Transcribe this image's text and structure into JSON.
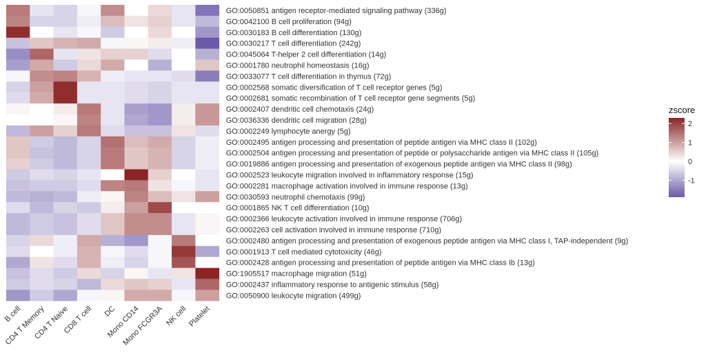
{
  "chart_data": {
    "type": "heatmap",
    "title": "",
    "xlabel": "",
    "ylabel": "",
    "columns": [
      "B cell",
      "CD4 T Memory",
      "CD4 T Naive",
      "CD8 T cell",
      "DC",
      "Mono CD14",
      "Mono FCGR3A",
      "NK cell",
      "Platelet"
    ],
    "rows": [
      "GO:0050851 antigen receptor-mediated signaling pathway (336g)",
      "GO:0042100 B cell proliferation (94g)",
      "GO:0030183 B cell differentiation (130g)",
      "GO:0030217 T cell differentiation (242g)",
      "GO:0045064 T-helper 2 cell differentiation (14g)",
      "GO:0001780 neutrophil homeostasis (16g)",
      "GO:0033077 T cell differentiation in thymus (72g)",
      "GO:0002568 somatic diversification of T cell receptor genes (5g)",
      "GO:0002681 somatic recombination of T cell receptor gene segments (5g)",
      "GO:0002407 dendritic cell chemotaxis (24g)",
      "GO:0036336 dendritic cell migration (28g)",
      "GO:0002249 lymphocyte anergy (5g)",
      "GO:0002495 antigen processing and presentation of peptide antigen via MHC class II (102g)",
      "GO:0002504 antigen processing and presentation of peptide or polysaccharide antigen via MHC class II (105g)",
      "GO:0019886 antigen processing and presentation of exogenous peptide antigen via MHC class II (98g)",
      "GO:0002523 leukocyte migration involved in inflammatory response (15g)",
      "GO:0002281 macrophage activation involved in immune response (13g)",
      "GO:0030593 neutrophil chemotaxis (99g)",
      "GO:0001865 NK T cell differentiation (10g)",
      "GO:0002366 leukocyte activation involved in immune response (706g)",
      "GO:0002263 cell activation involved in immune response (710g)",
      "GO:0002480 antigen processing and presentation of exogenous peptide antigen via MHC class I, TAP-independent (9g)",
      "GO:0001913 T cell mediated cytotoxicity (46g)",
      "GO:0002428 antigen processing and presentation of peptide antigen via MHC class Ib (13g)",
      "GO:1905517 macrophage migration (51g)",
      "GO:0002437 inflammatory response to antigenic stimulus (58g)",
      "GO:0050900 leukocyte migration (499g)"
    ],
    "values": [
      [
        1.4,
        -0.3,
        -0.5,
        -0.1,
        1.2,
        0.0,
        0.4,
        -0.3,
        -1.6
      ],
      [
        1.3,
        -0.5,
        -0.5,
        -0.2,
        0.7,
        0.3,
        0.5,
        -0.3,
        -0.8
      ],
      [
        2.2,
        0.0,
        -0.3,
        -0.1,
        -0.6,
        0.0,
        0.4,
        0.0,
        -1.2
      ],
      [
        -0.7,
        0.6,
        0.8,
        0.9,
        -0.1,
        0.1,
        0.2,
        -0.2,
        -1.9
      ],
      [
        -1.3,
        1.6,
        -0.3,
        0.3,
        0.5,
        0.5,
        -0.4,
        0.0,
        -0.9
      ],
      [
        -1.1,
        0.9,
        -0.6,
        0.4,
        0.9,
        0.0,
        -0.9,
        0.0,
        0.6
      ],
      [
        -0.1,
        1.2,
        1.3,
        0.8,
        -0.2,
        -0.3,
        -0.3,
        -0.4,
        -1.5
      ],
      [
        -0.5,
        1.0,
        2.2,
        -0.3,
        -0.3,
        -0.4,
        -0.5,
        -0.3,
        -0.3
      ],
      [
        -0.4,
        0.9,
        2.2,
        -0.3,
        -0.3,
        -0.4,
        -0.5,
        -0.3,
        -0.3
      ],
      [
        0.1,
        0.0,
        0.2,
        1.4,
        -0.3,
        -1.1,
        -1.2,
        0.2,
        1.1
      ],
      [
        0.0,
        0.0,
        0.1,
        1.3,
        -0.3,
        -1.0,
        -1.2,
        0.2,
        1.1
      ],
      [
        -0.8,
        1.0,
        0.5,
        1.4,
        -0.4,
        -0.7,
        -0.7,
        0.3,
        -0.4
      ],
      [
        0.6,
        -0.6,
        -0.8,
        -0.5,
        1.5,
        0.7,
        0.9,
        -0.5,
        -0.2
      ],
      [
        0.6,
        -0.7,
        -0.8,
        -0.5,
        1.4,
        0.6,
        0.8,
        -0.5,
        -0.2
      ],
      [
        0.5,
        -0.6,
        -0.8,
        -0.5,
        1.4,
        0.6,
        0.8,
        -0.5,
        -0.2
      ],
      [
        -0.6,
        -0.4,
        -0.5,
        -0.3,
        0.0,
        2.3,
        0.5,
        0.0,
        -0.3
      ],
      [
        -0.7,
        -0.6,
        -0.6,
        -0.4,
        1.3,
        1.4,
        0.3,
        -0.1,
        -0.3
      ],
      [
        -0.8,
        -0.9,
        -0.8,
        -0.2,
        0.1,
        1.3,
        0.7,
        0.3,
        1.0
      ],
      [
        -0.4,
        -0.8,
        -0.5,
        -0.6,
        0.2,
        1.0,
        1.9,
        0.0,
        0.0
      ],
      [
        -0.8,
        -0.6,
        -0.7,
        -0.4,
        0.6,
        1.2,
        1.2,
        -0.3,
        0.1
      ],
      [
        -0.8,
        -0.6,
        -0.7,
        -0.4,
        0.6,
        1.2,
        1.2,
        -0.3,
        0.1
      ],
      [
        -0.5,
        0.4,
        -0.2,
        0.9,
        -0.9,
        -1.2,
        -0.1,
        1.4,
        0.0
      ],
      [
        -0.4,
        0.0,
        -0.2,
        0.8,
        -0.1,
        -0.4,
        -0.1,
        2.1,
        -1.0
      ],
      [
        -1.0,
        0.3,
        -0.4,
        0.8,
        -0.2,
        -0.5,
        -0.1,
        1.8,
        0.0
      ],
      [
        -0.7,
        -0.4,
        -0.6,
        0.4,
        -0.5,
        0.1,
        -0.3,
        0.3,
        2.3
      ],
      [
        -0.6,
        -0.4,
        -0.5,
        -0.8,
        0.4,
        0.6,
        0.5,
        -0.3,
        1.6
      ],
      [
        -1.2,
        -0.6,
        -1.0,
        -0.1,
        0.1,
        0.9,
        0.9,
        -0.1,
        1.0
      ]
    ],
    "legend": {
      "title": "zscore",
      "ticks": [
        2,
        1,
        0,
        -1
      ],
      "range": [
        -1.9,
        2.3
      ],
      "colors": {
        "low": "#6a5aa8",
        "mid": "#ffffff",
        "high": "#8b2525"
      },
      "placement": "right"
    },
    "grid": false
  }
}
